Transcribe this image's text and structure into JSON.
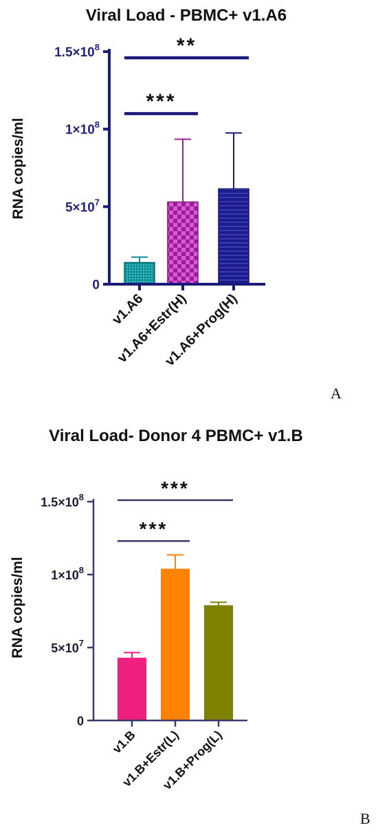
{
  "chart_data": [
    {
      "type": "bar",
      "title": "Viral Load - PBMC+ v1.A6",
      "ylabel": "RNA copies/ml",
      "xlabel": "",
      "ylim": [
        0,
        150000000
      ],
      "yticks": [
        {
          "value": 0,
          "label": "0",
          "exp": ""
        },
        {
          "value": 50000000,
          "label": "5×10",
          "exp": "7"
        },
        {
          "value": 100000000,
          "label": "1×10",
          "exp": "8"
        },
        {
          "value": 150000000,
          "label": "1.5×10",
          "exp": "8"
        }
      ],
      "categories": [
        "v1.A6",
        "v1.A6+Estr(H)",
        "v1.A6+Prog(H)"
      ],
      "values": [
        14000000,
        53000000,
        61500000
      ],
      "error_upper": [
        17500000,
        93500000,
        97500000
      ],
      "bar_colors": [
        "#0f8e95",
        "#9b1f99",
        "#1c1c8c"
      ],
      "patterns": [
        "dots",
        "checker",
        "stripes"
      ],
      "axis_color": "#1a1a7a",
      "significance": [
        {
          "from": 0,
          "to": 1,
          "label": "***",
          "level": 110000000
        },
        {
          "from": 0,
          "to": 2,
          "label": "**",
          "level": 146000000
        }
      ],
      "panel_label": "A",
      "grid": false
    },
    {
      "type": "bar",
      "title": "Viral Load- Donor 4 PBMC+ v1.B",
      "ylabel": "RNA copies/ml",
      "xlabel": "",
      "ylim": [
        0,
        150000000
      ],
      "yticks": [
        {
          "value": 0,
          "label": "0",
          "exp": ""
        },
        {
          "value": 50000000,
          "label": "5×10",
          "exp": "7"
        },
        {
          "value": 100000000,
          "label": "1×10",
          "exp": "8"
        },
        {
          "value": 150000000,
          "label": "1.5×10",
          "exp": "8"
        }
      ],
      "categories": [
        "v1.B",
        "v1.B+Estr(L)",
        "v1.B+Prog(L)"
      ],
      "values": [
        43000000,
        104000000,
        79000000
      ],
      "error_upper": [
        46500000,
        113500000,
        81000000
      ],
      "bar_colors": [
        "#f0207e",
        "#ff8300",
        "#7f8100"
      ],
      "patterns": [
        "solid",
        "solid",
        "solid"
      ],
      "axis_color": "#3a3a6e",
      "significance": [
        {
          "from": 0,
          "to": 1,
          "label": "***",
          "level": 123000000
        },
        {
          "from": 0,
          "to": 2,
          "label": "***",
          "level": 151000000
        }
      ],
      "panel_label": "B",
      "grid": false
    }
  ]
}
